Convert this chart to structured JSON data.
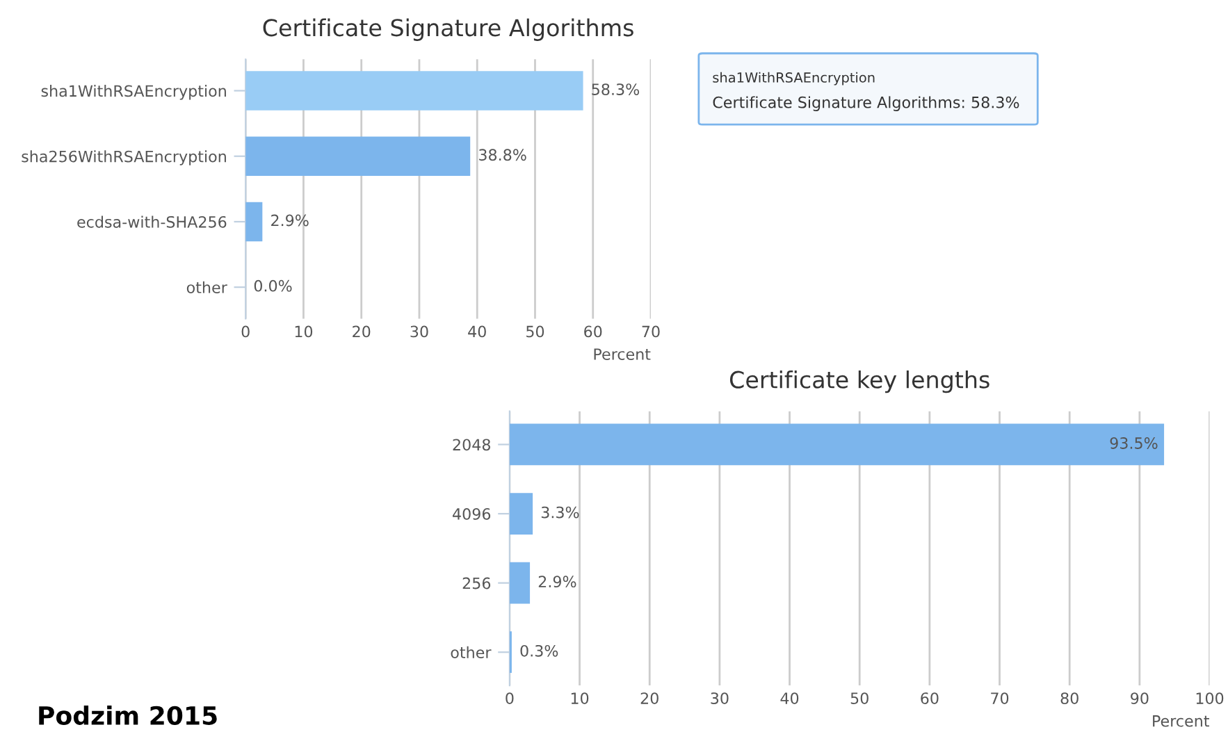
{
  "chart_data": [
    {
      "type": "bar",
      "orientation": "horizontal",
      "title": "Certificate Signature Algorithms",
      "xlabel": "Percent",
      "categories": [
        "sha1WithRSAEncryption",
        "sha256WithRSAEncryption",
        "ecdsa-with-SHA256",
        "other"
      ],
      "values": [
        58.3,
        38.8,
        2.9,
        0.0
      ],
      "colors": [
        "#99ccf5",
        "#7cb5ec",
        "#7cb5ec",
        "#7cb5ec"
      ],
      "value_labels": [
        "58.3%",
        "38.8%",
        "2.9%",
        "0.0%"
      ],
      "xlim": [
        0,
        70
      ],
      "xticks": [
        0,
        10,
        20,
        30,
        40,
        50,
        60,
        70
      ],
      "grid": "x",
      "annotations": [
        "sha1WithRSAEncryption",
        "Certificate Signature Algorithms: 58.3%"
      ]
    },
    {
      "type": "bar",
      "orientation": "horizontal",
      "title": "Certificate key lengths",
      "xlabel": "Percent",
      "categories": [
        "2048",
        "4096",
        "256",
        "other"
      ],
      "values": [
        93.5,
        3.3,
        2.9,
        0.3
      ],
      "colors": [
        "#7cb5ec",
        "#7cb5ec",
        "#7cb5ec",
        "#7cb5ec"
      ],
      "value_labels": [
        "93.5%",
        "3.3%",
        "2.9%",
        "0.3%"
      ],
      "xlim": [
        0,
        100
      ],
      "xticks": [
        0,
        10,
        20,
        30,
        40,
        50,
        60,
        70,
        80,
        90,
        100
      ],
      "grid": "x",
      "annotations": [
        "Podzim 2015"
      ]
    }
  ]
}
